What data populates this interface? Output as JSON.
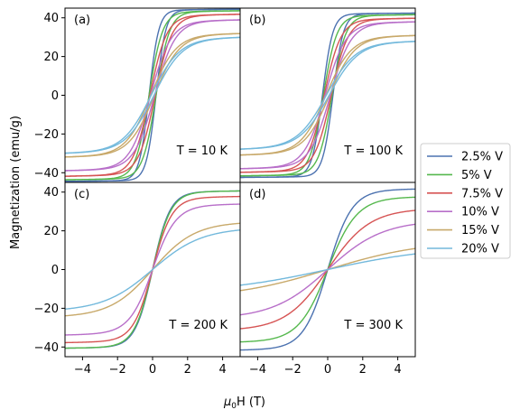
{
  "chart_data": {
    "type": "line",
    "xlabel": "μ0H (T)",
    "ylabel": "Magnetization (emu/g)",
    "xlim": [
      -5,
      5
    ],
    "ylim": [
      -45,
      45
    ],
    "xticks": [
      -4,
      -2,
      0,
      2,
      4
    ],
    "yticks": [
      -40,
      -20,
      0,
      20,
      40
    ],
    "xtick_labels": [
      "−4",
      "−2",
      "0",
      "2",
      "4"
    ],
    "ytick_labels": [
      "−40",
      "−20",
      "0",
      "20",
      "40"
    ],
    "grid": false,
    "legend_position": "right",
    "legend": [
      {
        "label": "2.5% V",
        "color": "#4c72b0"
      },
      {
        "label": "5% V",
        "color": "#55b84d"
      },
      {
        "label": "7.5% V",
        "color": "#d65454"
      },
      {
        "label": "10% V",
        "color": "#b86fc9"
      },
      {
        "label": "15% V",
        "color": "#c8a96a"
      },
      {
        "label": "20% V",
        "color": "#73b9dc"
      }
    ],
    "panels": [
      {
        "tag": "(a)",
        "temperature_label": "T = 10 K",
        "hysteresis": true,
        "series": [
          {
            "name": "2.5% V",
            "ms": 44,
            "hc": 0.2,
            "sharpness": 1.8,
            "tail": 0.02
          },
          {
            "name": "5% V",
            "ms": 43,
            "hc": 0.2,
            "sharpness": 1.3,
            "tail": 0.03
          },
          {
            "name": "7.5% V",
            "ms": 41,
            "hc": 0.15,
            "sharpness": 1.05,
            "tail": 0.04
          },
          {
            "name": "10% V",
            "ms": 38,
            "hc": 0.12,
            "sharpness": 0.85,
            "tail": 0.05
          },
          {
            "name": "15% V",
            "ms": 31,
            "hc": 0.1,
            "sharpness": 0.7,
            "tail": 0.06
          },
          {
            "name": "20% V",
            "ms": 29,
            "hc": 0.08,
            "sharpness": 0.62,
            "tail": 0.07
          }
        ]
      },
      {
        "tag": "(b)",
        "temperature_label": "T = 100 K",
        "hysteresis": true,
        "series": [
          {
            "name": "2.5% V",
            "ms": 42,
            "hc": 0.3,
            "sharpness": 1.7,
            "tail": 0.02
          },
          {
            "name": "5% V",
            "ms": 41,
            "hc": 0.25,
            "sharpness": 1.3,
            "tail": 0.03
          },
          {
            "name": "7.5% V",
            "ms": 39,
            "hc": 0.2,
            "sharpness": 1.05,
            "tail": 0.04
          },
          {
            "name": "10% V",
            "ms": 37,
            "hc": 0.15,
            "sharpness": 0.85,
            "tail": 0.05
          },
          {
            "name": "15% V",
            "ms": 30,
            "hc": 0.1,
            "sharpness": 0.7,
            "tail": 0.06
          },
          {
            "name": "20% V",
            "ms": 27,
            "hc": 0.08,
            "sharpness": 0.6,
            "tail": 0.07
          }
        ]
      },
      {
        "tag": "(c)",
        "temperature_label": "T = 200 K",
        "hysteresis": false,
        "series": [
          {
            "name": "2.5% V",
            "ms": 40,
            "hc": 0,
            "sharpness": 1.0,
            "tail": 0.03
          },
          {
            "name": "5% V",
            "ms": 40,
            "hc": 0,
            "sharpness": 0.95,
            "tail": 0.03
          },
          {
            "name": "7.5% V",
            "ms": 37,
            "hc": 0,
            "sharpness": 0.9,
            "tail": 0.04
          },
          {
            "name": "10% V",
            "ms": 33,
            "hc": 0,
            "sharpness": 0.75,
            "tail": 0.05
          },
          {
            "name": "15% V",
            "ms": 24,
            "hc": 0,
            "sharpness": 0.42,
            "tail": 0.05
          },
          {
            "name": "20% V",
            "ms": 21,
            "hc": 0,
            "sharpness": 0.36,
            "tail": 0.05
          }
        ]
      },
      {
        "tag": "(d)",
        "temperature_label": "T = 300 K",
        "hysteresis": false,
        "series": [
          {
            "name": "2.5% V",
            "ms": 41,
            "hc": 0,
            "sharpness": 0.72,
            "tail": 0.03
          },
          {
            "name": "5% V",
            "ms": 37,
            "hc": 0,
            "sharpness": 0.6,
            "tail": 0.03
          },
          {
            "name": "7.5% V",
            "ms": 31,
            "hc": 0,
            "sharpness": 0.42,
            "tail": 0.03
          },
          {
            "name": "10% V",
            "ms": 25,
            "hc": 0,
            "sharpness": 0.32,
            "tail": 0.03
          },
          {
            "name": "15% V",
            "ms": 15,
            "hc": 0,
            "sharpness": 0.18,
            "tail": 0.02
          },
          {
            "name": "20% V",
            "ms": 12,
            "hc": 0,
            "sharpness": 0.16,
            "tail": 0.02
          }
        ]
      }
    ]
  }
}
